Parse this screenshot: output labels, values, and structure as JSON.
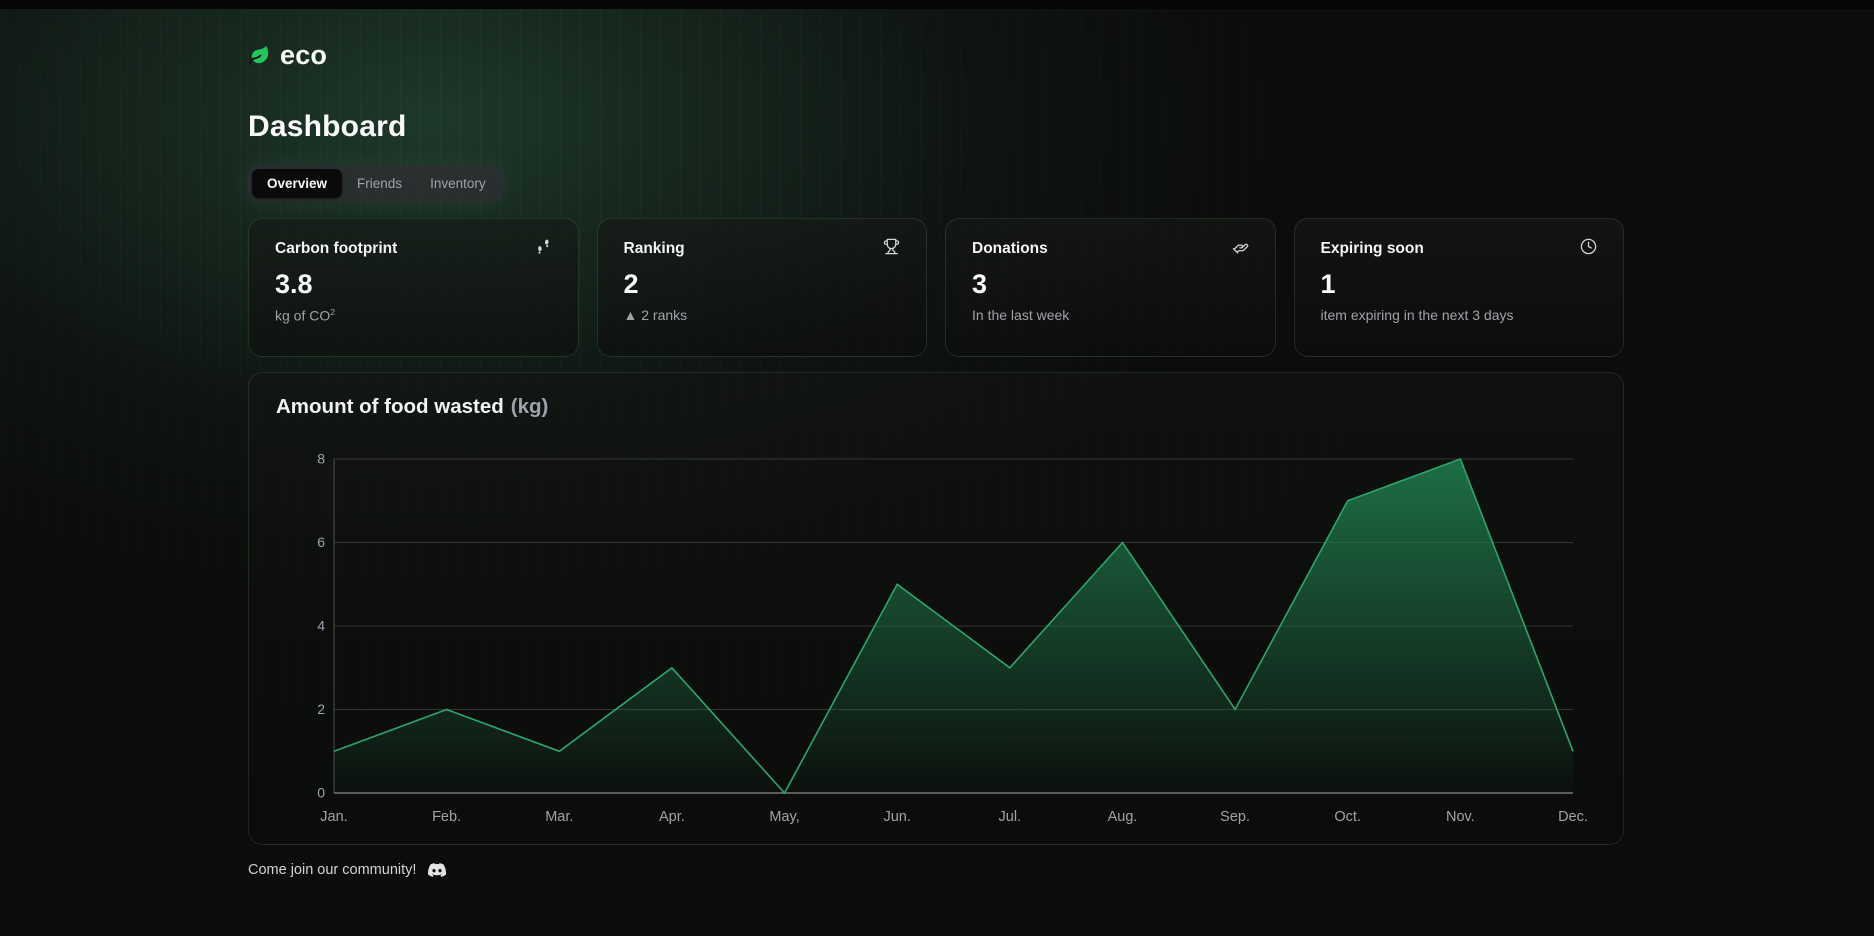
{
  "brand": {
    "name": "eco"
  },
  "page_title": "Dashboard",
  "tabs": [
    {
      "label": "Overview",
      "active": true
    },
    {
      "label": "Friends",
      "active": false
    },
    {
      "label": "Inventory",
      "active": false
    }
  ],
  "cards": [
    {
      "title": "Carbon footprint",
      "icon": "footprints-icon",
      "value": "3.8",
      "sub": "kg of CO",
      "sub_sup": "2"
    },
    {
      "title": "Ranking",
      "icon": "trophy-icon",
      "value": "2",
      "sub": "▲ 2 ranks"
    },
    {
      "title": "Donations",
      "icon": "donation-hand-icon",
      "value": "3",
      "sub": "In the last week"
    },
    {
      "title": "Expiring soon",
      "icon": "clock-icon",
      "value": "1",
      "sub": "item expiring in the next 3 days"
    }
  ],
  "chart": {
    "title": "Amount of food wasted",
    "unit": "(kg)"
  },
  "chart_data": {
    "type": "area",
    "title": "Amount of food wasted (kg)",
    "x": [
      "Jan.",
      "Feb.",
      "Mar.",
      "Apr.",
      "May,",
      "Jun.",
      "Jul.",
      "Aug.",
      "Sep.",
      "Oct.",
      "Nov.",
      "Dec."
    ],
    "values": [
      1,
      2,
      1,
      3,
      0,
      5,
      3,
      6,
      2,
      7,
      8,
      1
    ],
    "xlabel": "",
    "ylabel": "",
    "ylim": [
      0,
      8
    ],
    "yticks": [
      0,
      2,
      4,
      6,
      8
    ],
    "grid": "horizontal",
    "legend": "none",
    "line_color": "#2da56b",
    "fill_color": "#1e7347"
  },
  "footer": {
    "text": "Come join our community!"
  },
  "colors": {
    "accent_green": "#22c55e",
    "background": "#0b0c0b",
    "card_border": "rgba(104,150,124,0.22)"
  }
}
